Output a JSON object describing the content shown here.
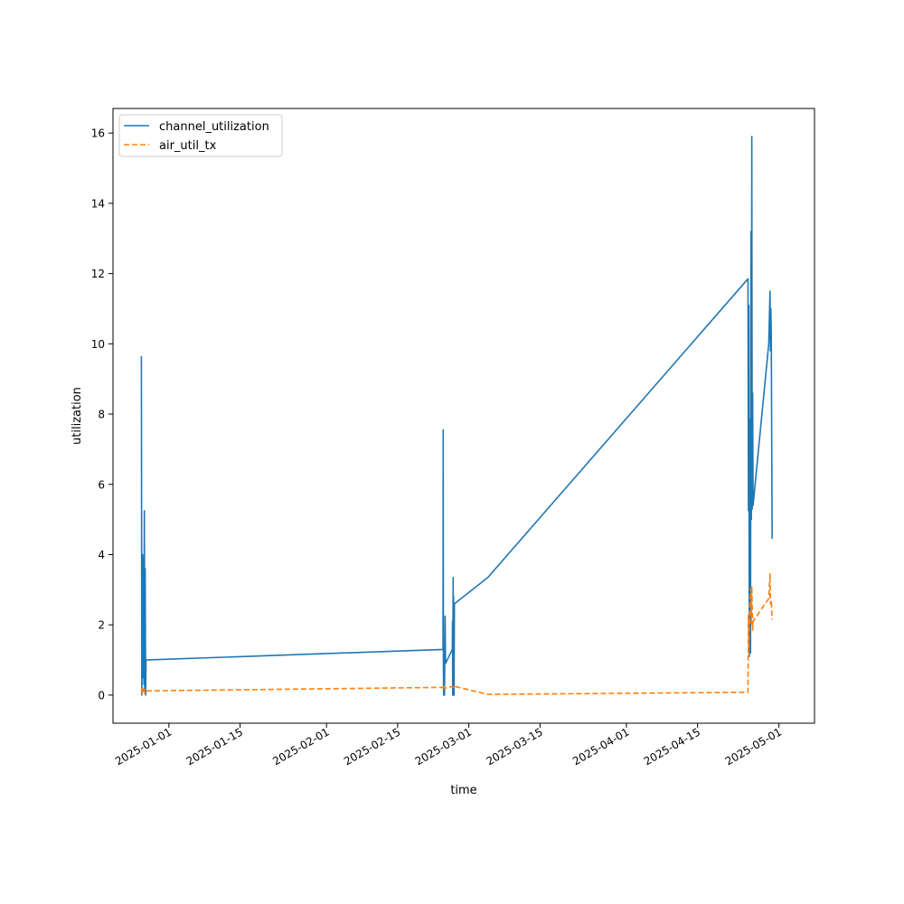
{
  "chart_data": {
    "type": "line",
    "title": "",
    "xlabel": "time",
    "ylabel": "utilization",
    "x_type": "date",
    "xlim": [
      "2024-12-21",
      "2025-05-08"
    ],
    "ylim": [
      -0.8,
      16.7
    ],
    "x_ticks": [
      "2025-01-01",
      "2025-01-15",
      "2025-02-01",
      "2025-02-15",
      "2025-03-01",
      "2025-03-15",
      "2025-04-01",
      "2025-04-15",
      "2025-05-01"
    ],
    "y_ticks": [
      0,
      2,
      4,
      6,
      8,
      10,
      12,
      14,
      16
    ],
    "grid": false,
    "legend_position": "upper-left",
    "series": [
      {
        "name": "channel_utilization",
        "color": "#1f77b4",
        "style": "solid",
        "points": [
          [
            "2024-12-26T14:00",
            9.65
          ],
          [
            "2024-12-26T16:00",
            0.0
          ],
          [
            "2024-12-26T18:00",
            1.2
          ],
          [
            "2024-12-26T20:00",
            4.0
          ],
          [
            "2024-12-26T22:00",
            0.5
          ],
          [
            "2024-12-27T00:00",
            3.9
          ],
          [
            "2024-12-27T02:00",
            0.3
          ],
          [
            "2024-12-27T04:00",
            5.25
          ],
          [
            "2024-12-27T06:00",
            0.2
          ],
          [
            "2024-12-27T08:00",
            3.6
          ],
          [
            "2024-12-27T10:00",
            0.0
          ],
          [
            "2024-12-27T12:00",
            1.0
          ],
          [
            "2025-02-23T22:00",
            1.3
          ],
          [
            "2025-02-23T23:00",
            7.55
          ],
          [
            "2025-02-24T00:00",
            0.9
          ],
          [
            "2025-02-24T01:00",
            0.0
          ],
          [
            "2025-02-24T03:00",
            0.6
          ],
          [
            "2025-02-24T05:00",
            0.0
          ],
          [
            "2025-02-24T08:00",
            2.25
          ],
          [
            "2025-02-24T10:00",
            0.9
          ],
          [
            "2025-02-25T18:00",
            1.3
          ],
          [
            "2025-02-25T19:00",
            2.1
          ],
          [
            "2025-02-25T20:00",
            0.0
          ],
          [
            "2025-02-25T22:00",
            3.35
          ],
          [
            "2025-02-25T23:00",
            0.0
          ],
          [
            "2025-02-26T00:00",
            2.8
          ],
          [
            "2025-02-26T02:00",
            0.0
          ],
          [
            "2025-02-26T04:00",
            2.6
          ],
          [
            "2025-03-04T18:00",
            3.35
          ],
          [
            "2025-04-24T22:00",
            11.85
          ],
          [
            "2025-04-25T00:00",
            5.25
          ],
          [
            "2025-04-25T02:00",
            11.1
          ],
          [
            "2025-04-25T04:00",
            1.1
          ],
          [
            "2025-04-25T08:00",
            7.85
          ],
          [
            "2025-04-25T10:00",
            1.2
          ],
          [
            "2025-04-25T12:00",
            13.2
          ],
          [
            "2025-04-25T14:00",
            5.0
          ],
          [
            "2025-04-25T16:00",
            15.9
          ],
          [
            "2025-04-25T18:00",
            5.3
          ],
          [
            "2025-04-25T20:00",
            8.6
          ],
          [
            "2025-04-25T22:00",
            5.4
          ],
          [
            "2025-04-29T00:00",
            10.0
          ],
          [
            "2025-04-29T06:00",
            11.5
          ],
          [
            "2025-04-29T08:00",
            9.8
          ],
          [
            "2025-04-29T10:00",
            11.0
          ],
          [
            "2025-04-29T12:00",
            10.2
          ],
          [
            "2025-04-29T16:00",
            4.45
          ]
        ]
      },
      {
        "name": "air_util_tx",
        "color": "#ff7f0e",
        "style": "dashed",
        "points": [
          [
            "2024-12-26T14:00",
            0.05
          ],
          [
            "2024-12-26T18:00",
            0.25
          ],
          [
            "2024-12-26T22:00",
            0.1
          ],
          [
            "2024-12-27T02:00",
            0.2
          ],
          [
            "2024-12-27T06:00",
            0.05
          ],
          [
            "2024-12-27T12:00",
            0.12
          ],
          [
            "2025-02-23T22:00",
            0.22
          ],
          [
            "2025-02-24T00:00",
            0.15
          ],
          [
            "2025-02-24T04:00",
            0.25
          ],
          [
            "2025-02-24T08:00",
            0.2
          ],
          [
            "2025-02-25T20:00",
            0.25
          ],
          [
            "2025-02-26T02:00",
            0.2
          ],
          [
            "2025-02-26T04:00",
            0.25
          ],
          [
            "2025-03-04T18:00",
            0.02
          ],
          [
            "2025-04-24T22:00",
            0.08
          ],
          [
            "2025-04-25T00:00",
            2.3
          ],
          [
            "2025-04-25T02:00",
            1.2
          ],
          [
            "2025-04-25T06:00",
            2.5
          ],
          [
            "2025-04-25T10:00",
            2.9
          ],
          [
            "2025-04-25T12:00",
            3.05
          ],
          [
            "2025-04-25T14:00",
            2.0
          ],
          [
            "2025-04-25T16:00",
            3.1
          ],
          [
            "2025-04-25T20:00",
            1.85
          ],
          [
            "2025-04-25T22:00",
            2.1
          ],
          [
            "2025-04-29T00:00",
            2.75
          ],
          [
            "2025-04-29T06:00",
            3.45
          ],
          [
            "2025-04-29T08:00",
            2.6
          ],
          [
            "2025-04-29T12:00",
            2.7
          ],
          [
            "2025-04-29T16:00",
            2.15
          ]
        ]
      }
    ]
  }
}
